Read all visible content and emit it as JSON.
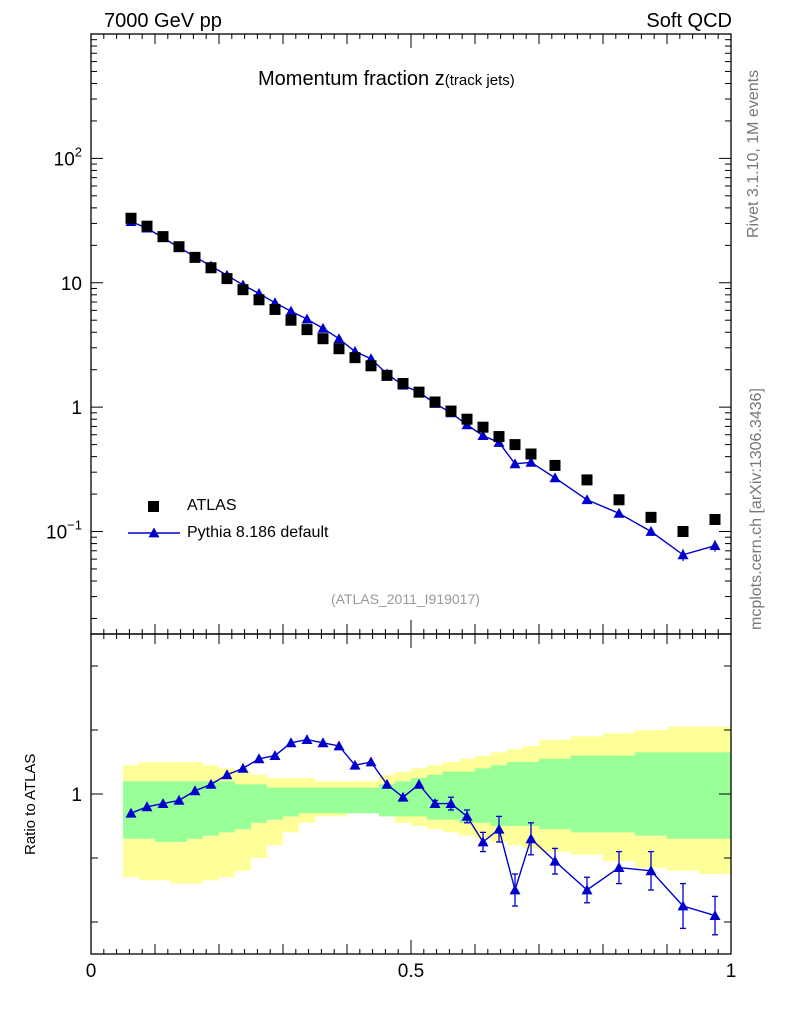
{
  "header": {
    "left": "7000 GeV pp",
    "right": "Soft QCD"
  },
  "side_texts": {
    "rivet": "Rivet 3.1.10,  1M events",
    "mcplots": "mcplots.cern.ch [arXiv:1306.3436]"
  },
  "main_panel": {
    "title_main": "Momentum fraction z",
    "title_sub": "(track jets)",
    "reference": "(ATLAS_2011_I919017)"
  },
  "ratio_panel": {
    "ylabel": "Ratio to ATLAS"
  },
  "legend": {
    "data_label": "ATLAS",
    "mc_label": "Pythia 8.186 default"
  },
  "colors": {
    "data": "#000000",
    "mc": "#0000cc",
    "band_inner": "#99ff99",
    "band_outer": "#ffff99"
  },
  "chart_data": [
    {
      "type": "scatter",
      "scale_y": "log",
      "xlim": [
        0,
        1
      ],
      "ylim": [
        0.015,
        1000
      ],
      "ytick_labels": [
        "10^-1",
        "1",
        "10",
        "10^2"
      ],
      "series": [
        {
          "name": "ATLAS",
          "marker": "square",
          "x": [
            0.0625,
            0.0875,
            0.1125,
            0.1375,
            0.1625,
            0.1875,
            0.2125,
            0.2375,
            0.2625,
            0.2875,
            0.3125,
            0.3375,
            0.3625,
            0.3875,
            0.4125,
            0.4375,
            0.4625,
            0.4875,
            0.5125,
            0.5375,
            0.5625,
            0.5875,
            0.6125,
            0.6375,
            0.6625,
            0.6875,
            0.725,
            0.775,
            0.825,
            0.875,
            0.925,
            0.975
          ],
          "y": [
            33,
            28.5,
            23.5,
            19.5,
            16,
            13.2,
            10.8,
            8.8,
            7.3,
            6.1,
            5.0,
            4.2,
            3.55,
            2.95,
            2.5,
            2.15,
            1.8,
            1.55,
            1.32,
            1.1,
            0.93,
            0.8,
            0.69,
            0.58,
            0.5,
            0.42,
            0.34,
            0.26,
            0.18,
            0.13,
            0.1,
            0.125
          ]
        },
        {
          "name": "Pythia 8.186 default",
          "marker": "triangle",
          "x": [
            0.0625,
            0.0875,
            0.1125,
            0.1375,
            0.1625,
            0.1875,
            0.2125,
            0.2375,
            0.2625,
            0.2875,
            0.3125,
            0.3375,
            0.3625,
            0.3875,
            0.4125,
            0.4375,
            0.4625,
            0.4875,
            0.5125,
            0.5375,
            0.5625,
            0.5875,
            0.6125,
            0.6375,
            0.6625,
            0.6875,
            0.725,
            0.775,
            0.825,
            0.875,
            0.925,
            0.975
          ],
          "y": [
            31,
            27.5,
            23,
            19.2,
            16.2,
            13.6,
            11.5,
            9.6,
            8.2,
            6.9,
            5.9,
            5.1,
            4.3,
            3.55,
            2.8,
            2.45,
            1.85,
            1.5,
            1.32,
            1.07,
            0.9,
            0.72,
            0.59,
            0.52,
            0.35,
            0.36,
            0.27,
            0.18,
            0.14,
            0.1,
            0.065,
            0.077
          ],
          "yerr": [
            0,
            0,
            0,
            0,
            0,
            0,
            0,
            0,
            0,
            0,
            0,
            0,
            0,
            0,
            0,
            0,
            0,
            0,
            0,
            0,
            0,
            0,
            0,
            0,
            0,
            0,
            0,
            0,
            0,
            0.008,
            0.007,
            0.008
          ]
        }
      ]
    },
    {
      "type": "line",
      "ylabel": "Ratio to ATLAS",
      "xlim": [
        0,
        1
      ],
      "x_tick_labels": [
        "0",
        "0.5",
        "1"
      ],
      "y_tick_labels": [
        "1"
      ],
      "ylim": [
        0.5,
        1.5
      ],
      "x_edges": [
        0.05,
        0.075,
        0.1,
        0.125,
        0.15,
        0.175,
        0.2,
        0.225,
        0.25,
        0.275,
        0.3,
        0.325,
        0.35,
        0.375,
        0.4,
        0.425,
        0.45,
        0.475,
        0.5,
        0.525,
        0.55,
        0.575,
        0.6,
        0.625,
        0.65,
        0.675,
        0.7,
        0.75,
        0.8,
        0.85,
        0.9,
        0.95,
        1.0
      ],
      "band_inner_low": [
        0.86,
        0.86,
        0.85,
        0.85,
        0.86,
        0.87,
        0.88,
        0.89,
        0.91,
        0.92,
        0.93,
        0.94,
        0.94,
        0.94,
        0.94,
        0.94,
        0.93,
        0.93,
        0.93,
        0.92,
        0.92,
        0.91,
        0.91,
        0.9,
        0.9,
        0.9,
        0.89,
        0.88,
        0.88,
        0.87,
        0.86,
        0.86
      ],
      "band_inner_high": [
        1.04,
        1.04,
        1.04,
        1.04,
        1.04,
        1.04,
        1.04,
        1.03,
        1.03,
        1.02,
        1.02,
        1.02,
        1.02,
        1.02,
        1.02,
        1.02,
        1.03,
        1.04,
        1.05,
        1.06,
        1.07,
        1.07,
        1.08,
        1.09,
        1.1,
        1.1,
        1.11,
        1.12,
        1.12,
        1.13,
        1.13,
        1.13
      ],
      "band_outer_low": [
        0.74,
        0.73,
        0.73,
        0.72,
        0.72,
        0.73,
        0.74,
        0.76,
        0.8,
        0.84,
        0.88,
        0.91,
        0.93,
        0.93,
        0.94,
        0.94,
        0.93,
        0.91,
        0.9,
        0.89,
        0.88,
        0.87,
        0.86,
        0.85,
        0.84,
        0.83,
        0.82,
        0.81,
        0.79,
        0.77,
        0.76,
        0.75
      ],
      "band_outer_high": [
        1.09,
        1.1,
        1.1,
        1.1,
        1.1,
        1.09,
        1.08,
        1.07,
        1.06,
        1.05,
        1.05,
        1.05,
        1.04,
        1.04,
        1.04,
        1.04,
        1.06,
        1.07,
        1.08,
        1.09,
        1.1,
        1.11,
        1.12,
        1.13,
        1.14,
        1.15,
        1.17,
        1.18,
        1.19,
        1.2,
        1.21,
        1.21
      ],
      "series": [
        {
          "name": "Pythia 8.186 default",
          "x": [
            0.0625,
            0.0875,
            0.1125,
            0.1375,
            0.1625,
            0.1875,
            0.2125,
            0.2375,
            0.2625,
            0.2875,
            0.3125,
            0.3375,
            0.3625,
            0.3875,
            0.4125,
            0.4375,
            0.4625,
            0.4875,
            0.5125,
            0.5375,
            0.5625,
            0.5875,
            0.6125,
            0.6375,
            0.6625,
            0.6875,
            0.725,
            0.775,
            0.825,
            0.875,
            0.925,
            0.975
          ],
          "y": [
            0.94,
            0.96,
            0.97,
            0.98,
            1.01,
            1.03,
            1.06,
            1.08,
            1.11,
            1.12,
            1.16,
            1.17,
            1.16,
            1.15,
            1.09,
            1.1,
            1.03,
            0.99,
            1.03,
            0.97,
            0.97,
            0.93,
            0.85,
            0.89,
            0.7,
            0.86,
            0.79,
            0.7,
            0.77,
            0.76,
            0.65,
            0.62
          ],
          "yerr": [
            0,
            0,
            0,
            0,
            0,
            0,
            0,
            0,
            0,
            0,
            0,
            0,
            0,
            0,
            0,
            0,
            0,
            0,
            0,
            0.01,
            0.02,
            0.02,
            0.03,
            0.04,
            0.05,
            0.05,
            0.04,
            0.04,
            0.05,
            0.06,
            0.07,
            0.06
          ]
        }
      ]
    }
  ]
}
